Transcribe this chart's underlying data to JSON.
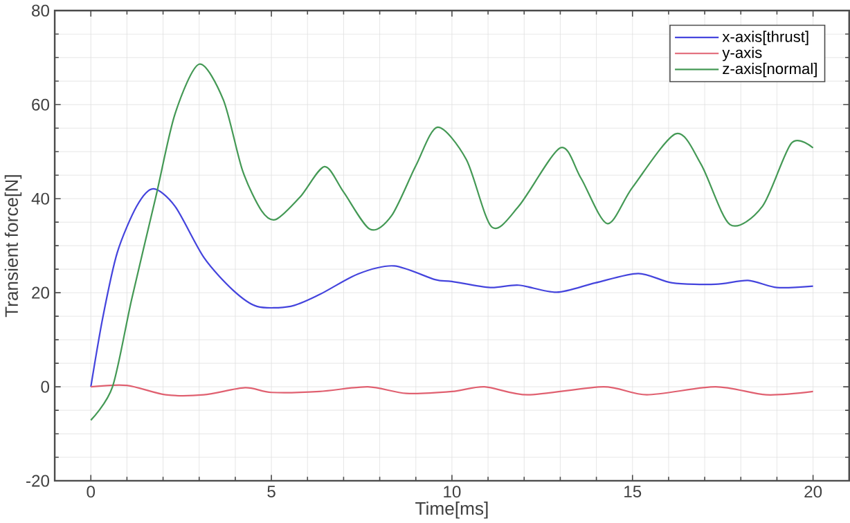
{
  "chart_data": {
    "type": "line",
    "xlabel": "Time[ms]",
    "ylabel": "Transient force[N]",
    "xlim": [
      -1,
      21
    ],
    "ylim": [
      -20,
      80
    ],
    "xticks": [
      0,
      5,
      10,
      15,
      20
    ],
    "yticks": [
      -20,
      0,
      20,
      40,
      60,
      80
    ],
    "grid": true,
    "legend": "top right",
    "line_style": "solid",
    "marker": "none",
    "series": [
      {
        "name": "x-axis[thrust]",
        "color": "#4444dd",
        "x": [
          0,
          0.33,
          0.73,
          1.27,
          1.73,
          2.33,
          3.13,
          3.93,
          4.6,
          5.53,
          6.33,
          7.4,
          8.4,
          9.53,
          10,
          11.06,
          11.85,
          12.9,
          13.97,
          15.16,
          16.1,
          17.3,
          18.2,
          19.0,
          20
        ],
        "values": [
          0,
          14.7,
          28.5,
          38.4,
          42.1,
          38.4,
          27.5,
          20.6,
          17.1,
          17.1,
          19.6,
          24,
          25.7,
          22.8,
          22.4,
          21.1,
          21.6,
          20.1,
          22.1,
          24.1,
          22.1,
          21.8,
          22.6,
          21.1,
          21.4
        ]
      },
      {
        "name": "y-axis",
        "color": "#e06070",
        "x": [
          0,
          1,
          2.07,
          3.13,
          4.27,
          5,
          6.33,
          7.67,
          8.73,
          10,
          10.9,
          12.1,
          14.2,
          15.4,
          17.3,
          18.7,
          20
        ],
        "values": [
          0,
          0.3,
          -1.7,
          -1.7,
          -0.2,
          -1.2,
          -1,
          0,
          -1.4,
          -1,
          0,
          -1.7,
          0,
          -1.7,
          0,
          -1.7,
          -1
        ]
      },
      {
        "name": "z-axis[normal]",
        "color": "#449955",
        "x": [
          0,
          0.6,
          1.13,
          1.8,
          2.33,
          3.0,
          3.67,
          4.2,
          4.73,
          5.13,
          5.8,
          6.47,
          7.0,
          7.73,
          8.33,
          9.0,
          9.6,
          10.4,
          11.1,
          11.85,
          13.0,
          13.57,
          14.3,
          15.0,
          16.2,
          16.9,
          17.7,
          18.6,
          19.4,
          20
        ],
        "values": [
          -7.1,
          0,
          18.6,
          40.4,
          58,
          68.6,
          61,
          46,
          37.4,
          35.6,
          40.4,
          46.8,
          41.4,
          33.5,
          36.4,
          47,
          55.2,
          48.3,
          34,
          38.4,
          50.8,
          44.4,
          34.7,
          42.4,
          53.8,
          47.3,
          34.5,
          38.4,
          51.8,
          50.8
        ]
      }
    ]
  }
}
